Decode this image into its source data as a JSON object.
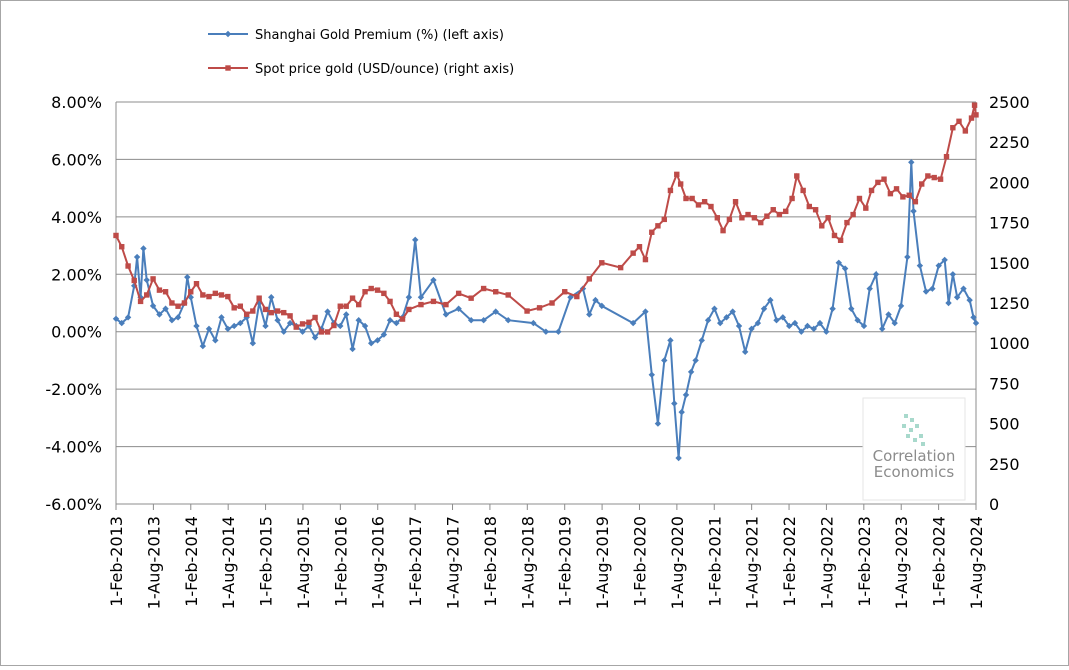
{
  "chart_data": {
    "type": "line",
    "title": "",
    "xlabel": "",
    "ylabel": "",
    "grid": true,
    "legend_placement": "top-left",
    "left_axis": {
      "ticks": [
        "8.00%",
        "6.00%",
        "4.00%",
        "2.00%",
        "0.00%",
        "-2.00%",
        "-4.00%",
        "-6.00%"
      ],
      "ylim": [
        -6,
        8
      ]
    },
    "right_axis": {
      "ticks": [
        "2500",
        "2250",
        "2000",
        "1750",
        "1500",
        "1250",
        "1000",
        "750",
        "500",
        "250",
        "0"
      ],
      "ylim": [
        0,
        2500
      ]
    },
    "x_ticks": [
      "1-Feb-2013",
      "1-Aug-2013",
      "1-Feb-2014",
      "1-Aug-2014",
      "1-Feb-2015",
      "1-Aug-2015",
      "1-Feb-2016",
      "1-Aug-2016",
      "1-Feb-2017",
      "1-Aug-2017",
      "1-Feb-2018",
      "1-Aug-2018",
      "1-Feb-2019",
      "1-Aug-2019",
      "1-Feb-2020",
      "1-Aug-2020",
      "1-Feb-2021",
      "1-Aug-2021",
      "1-Feb-2022",
      "1-Aug-2022",
      "1-Feb-2023",
      "1-Aug-2023",
      "1-Feb-2024",
      "1-Aug-2024"
    ],
    "series": [
      {
        "name": "Shanghai Gold Premium (%) (left axis)",
        "axis": "left",
        "color": "#4a7ebb",
        "marker": "diamond",
        "points": [
          [
            "2013-02-01",
            0.45
          ],
          [
            "2013-03-01",
            0.3
          ],
          [
            "2013-04-01",
            0.5
          ],
          [
            "2013-05-01",
            1.6
          ],
          [
            "2013-05-15",
            2.6
          ],
          [
            "2013-06-01",
            1.2
          ],
          [
            "2013-06-15",
            2.9
          ],
          [
            "2013-07-01",
            1.8
          ],
          [
            "2013-08-01",
            0.9
          ],
          [
            "2013-09-01",
            0.6
          ],
          [
            "2013-10-01",
            0.8
          ],
          [
            "2013-11-01",
            0.4
          ],
          [
            "2013-12-01",
            0.5
          ],
          [
            "2014-01-01",
            1.0
          ],
          [
            "2014-01-15",
            1.9
          ],
          [
            "2014-02-01",
            1.2
          ],
          [
            "2014-03-01",
            0.2
          ],
          [
            "2014-04-01",
            -0.5
          ],
          [
            "2014-05-01",
            0.1
          ],
          [
            "2014-06-01",
            -0.3
          ],
          [
            "2014-07-01",
            0.5
          ],
          [
            "2014-08-01",
            0.1
          ],
          [
            "2014-09-01",
            0.2
          ],
          [
            "2014-10-01",
            0.3
          ],
          [
            "2014-11-01",
            0.5
          ],
          [
            "2014-12-01",
            -0.4
          ],
          [
            "2015-01-01",
            1.0
          ],
          [
            "2015-02-01",
            0.2
          ],
          [
            "2015-03-01",
            1.2
          ],
          [
            "2015-04-01",
            0.4
          ],
          [
            "2015-05-01",
            0.0
          ],
          [
            "2015-06-01",
            0.3
          ],
          [
            "2015-07-01",
            0.2
          ],
          [
            "2015-08-01",
            0.0
          ],
          [
            "2015-09-01",
            0.2
          ],
          [
            "2015-10-01",
            -0.2
          ],
          [
            "2015-11-01",
            0.1
          ],
          [
            "2015-12-01",
            0.7
          ],
          [
            "2016-01-01",
            0.3
          ],
          [
            "2016-02-01",
            0.2
          ],
          [
            "2016-03-01",
            0.6
          ],
          [
            "2016-04-01",
            -0.6
          ],
          [
            "2016-05-01",
            0.4
          ],
          [
            "2016-06-01",
            0.2
          ],
          [
            "2016-07-01",
            -0.4
          ],
          [
            "2016-08-01",
            -0.3
          ],
          [
            "2016-09-01",
            -0.1
          ],
          [
            "2016-10-01",
            0.4
          ],
          [
            "2016-11-01",
            0.3
          ],
          [
            "2016-12-01",
            0.5
          ],
          [
            "2017-01-01",
            1.2
          ],
          [
            "2017-02-01",
            3.2
          ],
          [
            "2017-03-01",
            1.2
          ],
          [
            "2017-05-01",
            1.8
          ],
          [
            "2017-07-01",
            0.6
          ],
          [
            "2017-09-01",
            0.8
          ],
          [
            "2017-11-01",
            0.4
          ],
          [
            "2018-01-01",
            0.4
          ],
          [
            "2018-03-01",
            0.7
          ],
          [
            "2018-05-01",
            0.4
          ],
          [
            "2018-09-01",
            0.3
          ],
          [
            "2018-11-01",
            0.0
          ],
          [
            "2019-01-01",
            0.0
          ],
          [
            "2019-03-01",
            1.2
          ],
          [
            "2019-05-01",
            1.5
          ],
          [
            "2019-06-01",
            0.6
          ],
          [
            "2019-07-01",
            1.1
          ],
          [
            "2019-08-01",
            0.9
          ],
          [
            "2020-01-01",
            0.3
          ],
          [
            "2020-03-01",
            0.7
          ],
          [
            "2020-04-01",
            -1.5
          ],
          [
            "2020-05-01",
            -3.2
          ],
          [
            "2020-06-01",
            -1.0
          ],
          [
            "2020-07-01",
            -0.3
          ],
          [
            "2020-07-20",
            -2.5
          ],
          [
            "2020-08-10",
            -4.4
          ],
          [
            "2020-08-25",
            -2.8
          ],
          [
            "2020-09-15",
            -2.2
          ],
          [
            "2020-10-10",
            -1.4
          ],
          [
            "2020-11-01",
            -1.0
          ],
          [
            "2020-12-01",
            -0.3
          ],
          [
            "2021-01-01",
            0.4
          ],
          [
            "2021-02-01",
            0.8
          ],
          [
            "2021-03-01",
            0.3
          ],
          [
            "2021-04-01",
            0.5
          ],
          [
            "2021-05-01",
            0.7
          ],
          [
            "2021-06-01",
            0.2
          ],
          [
            "2021-07-01",
            -0.7
          ],
          [
            "2021-08-01",
            0.1
          ],
          [
            "2021-09-01",
            0.3
          ],
          [
            "2021-10-01",
            0.8
          ],
          [
            "2021-11-01",
            1.1
          ],
          [
            "2021-12-01",
            0.4
          ],
          [
            "2022-01-01",
            0.5
          ],
          [
            "2022-02-01",
            0.2
          ],
          [
            "2022-03-01",
            0.3
          ],
          [
            "2022-04-01",
            0.0
          ],
          [
            "2022-05-01",
            0.2
          ],
          [
            "2022-06-01",
            0.1
          ],
          [
            "2022-07-01",
            0.3
          ],
          [
            "2022-08-01",
            0.0
          ],
          [
            "2022-09-01",
            0.8
          ],
          [
            "2022-10-01",
            2.4
          ],
          [
            "2022-11-01",
            2.2
          ],
          [
            "2022-12-01",
            0.8
          ],
          [
            "2023-01-01",
            0.4
          ],
          [
            "2023-02-01",
            0.2
          ],
          [
            "2023-03-01",
            1.5
          ],
          [
            "2023-04-01",
            2.0
          ],
          [
            "2023-05-01",
            0.1
          ],
          [
            "2023-06-01",
            0.6
          ],
          [
            "2023-07-01",
            0.3
          ],
          [
            "2023-08-01",
            0.9
          ],
          [
            "2023-09-01",
            2.6
          ],
          [
            "2023-09-20",
            5.9
          ],
          [
            "2023-10-01",
            4.2
          ],
          [
            "2023-11-01",
            2.3
          ],
          [
            "2023-12-01",
            1.4
          ],
          [
            "2024-01-01",
            1.5
          ],
          [
            "2024-02-01",
            2.3
          ],
          [
            "2024-03-01",
            2.5
          ],
          [
            "2024-03-20",
            1.0
          ],
          [
            "2024-04-10",
            2.0
          ],
          [
            "2024-05-01",
            1.2
          ],
          [
            "2024-06-01",
            1.5
          ],
          [
            "2024-07-01",
            1.1
          ],
          [
            "2024-07-20",
            0.5
          ],
          [
            "2024-08-01",
            0.3
          ]
        ]
      },
      {
        "name": "Spot price gold (USD/ounce) (right axis)",
        "axis": "right",
        "color": "#be4b48",
        "marker": "square",
        "points": [
          [
            "2013-02-01",
            1670
          ],
          [
            "2013-03-01",
            1600
          ],
          [
            "2013-04-01",
            1480
          ],
          [
            "2013-05-01",
            1390
          ],
          [
            "2013-06-01",
            1260
          ],
          [
            "2013-07-01",
            1300
          ],
          [
            "2013-08-01",
            1400
          ],
          [
            "2013-09-01",
            1330
          ],
          [
            "2013-10-01",
            1320
          ],
          [
            "2013-11-01",
            1250
          ],
          [
            "2013-12-01",
            1230
          ],
          [
            "2014-01-01",
            1250
          ],
          [
            "2014-02-01",
            1320
          ],
          [
            "2014-03-01",
            1370
          ],
          [
            "2014-04-01",
            1300
          ],
          [
            "2014-05-01",
            1290
          ],
          [
            "2014-06-01",
            1310
          ],
          [
            "2014-07-01",
            1300
          ],
          [
            "2014-08-01",
            1290
          ],
          [
            "2014-09-01",
            1220
          ],
          [
            "2014-10-01",
            1230
          ],
          [
            "2014-11-01",
            1180
          ],
          [
            "2014-12-01",
            1200
          ],
          [
            "2015-01-01",
            1280
          ],
          [
            "2015-02-01",
            1210
          ],
          [
            "2015-03-01",
            1190
          ],
          [
            "2015-04-01",
            1200
          ],
          [
            "2015-05-01",
            1190
          ],
          [
            "2015-06-01",
            1170
          ],
          [
            "2015-07-01",
            1100
          ],
          [
            "2015-08-01",
            1120
          ],
          [
            "2015-09-01",
            1130
          ],
          [
            "2015-10-01",
            1160
          ],
          [
            "2015-11-01",
            1070
          ],
          [
            "2015-12-01",
            1070
          ],
          [
            "2016-01-01",
            1110
          ],
          [
            "2016-02-01",
            1230
          ],
          [
            "2016-03-01",
            1230
          ],
          [
            "2016-04-01",
            1280
          ],
          [
            "2016-05-01",
            1240
          ],
          [
            "2016-06-01",
            1320
          ],
          [
            "2016-07-01",
            1340
          ],
          [
            "2016-08-01",
            1330
          ],
          [
            "2016-09-01",
            1310
          ],
          [
            "2016-10-01",
            1260
          ],
          [
            "2016-11-01",
            1180
          ],
          [
            "2016-12-01",
            1150
          ],
          [
            "2017-01-01",
            1210
          ],
          [
            "2017-03-01",
            1240
          ],
          [
            "2017-05-01",
            1260
          ],
          [
            "2017-07-01",
            1240
          ],
          [
            "2017-09-01",
            1310
          ],
          [
            "2017-11-01",
            1280
          ],
          [
            "2018-01-01",
            1340
          ],
          [
            "2018-03-01",
            1320
          ],
          [
            "2018-05-01",
            1300
          ],
          [
            "2018-08-01",
            1200
          ],
          [
            "2018-10-01",
            1220
          ],
          [
            "2018-12-01",
            1250
          ],
          [
            "2019-02-01",
            1320
          ],
          [
            "2019-04-01",
            1290
          ],
          [
            "2019-06-01",
            1400
          ],
          [
            "2019-08-01",
            1500
          ],
          [
            "2019-11-01",
            1470
          ],
          [
            "2020-01-01",
            1560
          ],
          [
            "2020-02-01",
            1600
          ],
          [
            "2020-03-01",
            1520
          ],
          [
            "2020-04-01",
            1690
          ],
          [
            "2020-05-01",
            1730
          ],
          [
            "2020-06-01",
            1770
          ],
          [
            "2020-07-01",
            1950
          ],
          [
            "2020-08-01",
            2050
          ],
          [
            "2020-08-20",
            1990
          ],
          [
            "2020-09-15",
            1900
          ],
          [
            "2020-10-15",
            1900
          ],
          [
            "2020-11-15",
            1860
          ],
          [
            "2020-12-15",
            1880
          ],
          [
            "2021-01-15",
            1850
          ],
          [
            "2021-02-15",
            1780
          ],
          [
            "2021-03-15",
            1700
          ],
          [
            "2021-04-15",
            1770
          ],
          [
            "2021-05-15",
            1880
          ],
          [
            "2021-06-15",
            1780
          ],
          [
            "2021-07-15",
            1800
          ],
          [
            "2021-08-15",
            1780
          ],
          [
            "2021-09-15",
            1750
          ],
          [
            "2021-10-15",
            1790
          ],
          [
            "2021-11-15",
            1830
          ],
          [
            "2021-12-15",
            1800
          ],
          [
            "2022-01-15",
            1820
          ],
          [
            "2022-02-15",
            1900
          ],
          [
            "2022-03-10",
            2040
          ],
          [
            "2022-04-10",
            1950
          ],
          [
            "2022-05-10",
            1850
          ],
          [
            "2022-06-10",
            1830
          ],
          [
            "2022-07-10",
            1730
          ],
          [
            "2022-08-10",
            1780
          ],
          [
            "2022-09-10",
            1670
          ],
          [
            "2022-10-10",
            1640
          ],
          [
            "2022-11-10",
            1750
          ],
          [
            "2022-12-10",
            1800
          ],
          [
            "2023-01-10",
            1900
          ],
          [
            "2023-02-10",
            1840
          ],
          [
            "2023-03-10",
            1950
          ],
          [
            "2023-04-10",
            2000
          ],
          [
            "2023-05-10",
            2020
          ],
          [
            "2023-06-10",
            1930
          ],
          [
            "2023-07-10",
            1960
          ],
          [
            "2023-08-10",
            1910
          ],
          [
            "2023-09-10",
            1920
          ],
          [
            "2023-10-10",
            1880
          ],
          [
            "2023-11-10",
            1990
          ],
          [
            "2023-12-10",
            2040
          ],
          [
            "2024-01-10",
            2030
          ],
          [
            "2024-02-10",
            2020
          ],
          [
            "2024-03-10",
            2160
          ],
          [
            "2024-04-10",
            2340
          ],
          [
            "2024-05-10",
            2380
          ],
          [
            "2024-06-10",
            2320
          ],
          [
            "2024-07-10",
            2400
          ],
          [
            "2024-07-25",
            2480
          ],
          [
            "2024-08-01",
            2420
          ]
        ]
      }
    ]
  },
  "watermark": {
    "line1": "Correlation",
    "line2": "Economics"
  }
}
